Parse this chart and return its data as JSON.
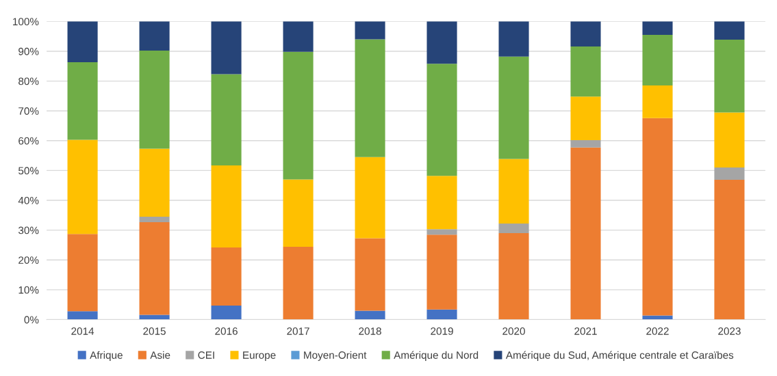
{
  "chart_data": {
    "type": "bar",
    "stacked": true,
    "categories": [
      "2014",
      "2015",
      "2016",
      "2017",
      "2018",
      "2019",
      "2020",
      "2021",
      "2022",
      "2023"
    ],
    "series": [
      {
        "name": "Afrique",
        "color": "#4472c4",
        "values": [
          2.8,
          1.6,
          4.7,
          0,
          3.0,
          3.4,
          0,
          0,
          1.4,
          0
        ]
      },
      {
        "name": "Asie",
        "color": "#ed7d31",
        "values": [
          25.9,
          31.1,
          19.5,
          24.4,
          24.3,
          25.1,
          29.0,
          57.7,
          66.2,
          46.9
        ]
      },
      {
        "name": "CEI",
        "color": "#a5a5a5",
        "values": [
          0,
          1.8,
          0,
          0,
          0,
          1.8,
          3.2,
          2.5,
          0,
          4.1
        ]
      },
      {
        "name": "Europe",
        "color": "#ffc000",
        "values": [
          31.6,
          22.8,
          27.5,
          22.6,
          27.2,
          17.9,
          21.7,
          14.6,
          10.9,
          18.5
        ]
      },
      {
        "name": "Moyen-Orient",
        "color": "#5b9bd5",
        "values": [
          0,
          0,
          0,
          0,
          0,
          0,
          0,
          0,
          0,
          0
        ]
      },
      {
        "name": "Amérique du Nord",
        "color": "#70ad47",
        "values": [
          26.0,
          32.9,
          30.6,
          42.8,
          39.5,
          37.6,
          34.3,
          16.8,
          17.0,
          24.4
        ]
      },
      {
        "name": "Amérique du Sud, Amérique centrale et Caraïbes",
        "color": "#264478",
        "values": [
          13.7,
          9.8,
          17.7,
          10.2,
          6.0,
          14.2,
          11.8,
          8.4,
          4.5,
          6.1
        ]
      }
    ],
    "ylim": [
      0,
      100
    ],
    "yticks": [
      {
        "value": 0,
        "label": "0%"
      },
      {
        "value": 10,
        "label": "10%"
      },
      {
        "value": 20,
        "label": "20%"
      },
      {
        "value": 30,
        "label": "30%"
      },
      {
        "value": 40,
        "label": "40%"
      },
      {
        "value": 50,
        "label": "50%"
      },
      {
        "value": 60,
        "label": "60%"
      },
      {
        "value": 70,
        "label": "70%"
      },
      {
        "value": 80,
        "label": "80%"
      },
      {
        "value": 90,
        "label": "90%"
      },
      {
        "value": 100,
        "label": "100%"
      }
    ],
    "grid": "y",
    "legend": "bottom"
  }
}
